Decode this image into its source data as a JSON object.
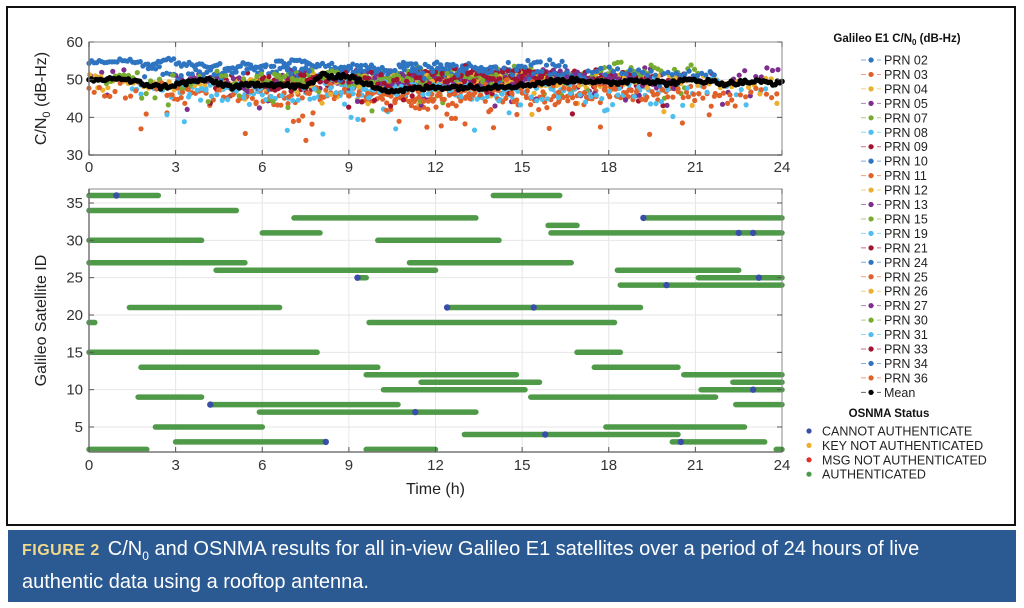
{
  "caption": {
    "figure_label": "FIGURE 2",
    "text_before_sub": "C/N",
    "sub": "0",
    "text_after_sub": " and OSNMA results for all in-view Galileo E1 satellites over a period of 24 hours of live authentic data using a rooftop antenna."
  },
  "chart_data": [
    {
      "type": "scatter",
      "title": "",
      "xlabel": "",
      "ylabel": "C/N0 (dB-Hz)",
      "ylabel_main": "C/N",
      "ylabel_sub": "0",
      "ylabel_suffix": " (dB-Hz)",
      "xlim": [
        0,
        24
      ],
      "ylim": [
        30,
        60
      ],
      "xticks": [
        0,
        3,
        6,
        9,
        12,
        15,
        18,
        21,
        24
      ],
      "yticks": [
        30,
        40,
        50,
        60
      ],
      "grid": true,
      "legend_title_main": "Galileo E1 C/N",
      "legend_title_sub": "0",
      "legend_title_suffix": " (dB-Hz)",
      "legend_position": "right",
      "series": [
        {
          "name": "PRN 02",
          "color": "#2e74c0",
          "approx_level": 54,
          "variability": 1.0
        },
        {
          "name": "PRN 03",
          "color": "#e0622a",
          "approx_level": 46,
          "variability": 4.0
        },
        {
          "name": "PRN 04",
          "color": "#ebb02e",
          "approx_level": 50,
          "variability": 3.0
        },
        {
          "name": "PRN 05",
          "color": "#7e2f8e",
          "approx_level": 51,
          "variability": 3.0
        },
        {
          "name": "PRN 07",
          "color": "#77ac30",
          "approx_level": 52,
          "variability": 2.5
        },
        {
          "name": "PRN 08",
          "color": "#4dbeee",
          "approx_level": 47,
          "variability": 4.0
        },
        {
          "name": "PRN 09",
          "color": "#a2142f",
          "approx_level": 50,
          "variability": 3.5
        },
        {
          "name": "PRN 10",
          "color": "#2e74c0",
          "approx_level": 53,
          "variability": 1.5
        },
        {
          "name": "PRN 11",
          "color": "#e0622a",
          "approx_level": 45,
          "variability": 4.0
        },
        {
          "name": "PRN 12",
          "color": "#ebb02e",
          "approx_level": 49,
          "variability": 3.0
        },
        {
          "name": "PRN 13",
          "color": "#7e2f8e",
          "approx_level": 50,
          "variability": 3.0
        },
        {
          "name": "PRN 15",
          "color": "#77ac30",
          "approx_level": 51,
          "variability": 2.5
        },
        {
          "name": "PRN 19",
          "color": "#4dbeee",
          "approx_level": 48,
          "variability": 4.0
        },
        {
          "name": "PRN 21",
          "color": "#a2142f",
          "approx_level": 51,
          "variability": 3.0
        },
        {
          "name": "PRN 24",
          "color": "#2e74c0",
          "approx_level": 52,
          "variability": 2.0
        },
        {
          "name": "PRN 25",
          "color": "#e0622a",
          "approx_level": 46,
          "variability": 4.0
        },
        {
          "name": "PRN 26",
          "color": "#ebb02e",
          "approx_level": 50,
          "variability": 3.0
        },
        {
          "name": "PRN 27",
          "color": "#7e2f8e",
          "approx_level": 50,
          "variability": 3.0
        },
        {
          "name": "PRN 30",
          "color": "#77ac30",
          "approx_level": 50,
          "variability": 3.0
        },
        {
          "name": "PRN 31",
          "color": "#4dbeee",
          "approx_level": 47,
          "variability": 4.5
        },
        {
          "name": "PRN 33",
          "color": "#a2142f",
          "approx_level": 50,
          "variability": 3.5
        },
        {
          "name": "PRN 34",
          "color": "#2e74c0",
          "approx_level": 53,
          "variability": 1.5
        },
        {
          "name": "PRN 36",
          "color": "#e0622a",
          "approx_level": 47,
          "variability": 4.0
        },
        {
          "name": "Mean",
          "color": "#000000",
          "mean_profile": [
            [
              0,
              49.5
            ],
            [
              1,
              50.5
            ],
            [
              1.5,
              49.5
            ],
            [
              2.5,
              48
            ],
            [
              4,
              50
            ],
            [
              5,
              48
            ],
            [
              6,
              49
            ],
            [
              7.5,
              48
            ],
            [
              8,
              51
            ],
            [
              9,
              51
            ],
            [
              9.5,
              49
            ],
            [
              10.5,
              47
            ],
            [
              12,
              48
            ],
            [
              13.5,
              48
            ],
            [
              15,
              48.5
            ],
            [
              16,
              49.5
            ],
            [
              17,
              50
            ],
            [
              18,
              49
            ],
            [
              19,
              50
            ],
            [
              20,
              49
            ],
            [
              21,
              50
            ],
            [
              22,
              49
            ],
            [
              23,
              49.5
            ],
            [
              24,
              49
            ]
          ]
        }
      ]
    },
    {
      "type": "scatter",
      "title": "",
      "xlabel": "Time (h)",
      "ylabel": "Galileo Satellite ID",
      "xlim": [
        0,
        24
      ],
      "ylim": [
        1,
        37
      ],
      "xticks": [
        0,
        3,
        6,
        9,
        12,
        15,
        18,
        21,
        24
      ],
      "yticks": [
        5,
        10,
        15,
        20,
        25,
        30,
        35
      ],
      "grid": true,
      "legend_title": "OSNMA Status",
      "legend_position": "right",
      "status_legend": [
        {
          "label": "CANNOT AUTHENTICATE",
          "color": "#3a4ea8"
        },
        {
          "label": "KEY NOT AUTHENTICATED",
          "color": "#ebb02e"
        },
        {
          "label": "MSG NOT AUTHENTICATED",
          "color": "#e0302a"
        },
        {
          "label": "AUTHENTICATED",
          "color": "#4f9a48"
        }
      ],
      "authenticated_intervals": [
        {
          "sat": 36,
          "start": 0.0,
          "end": 2.4
        },
        {
          "sat": 36,
          "start": 14.0,
          "end": 16.3
        },
        {
          "sat": 34,
          "start": 0.0,
          "end": 5.1
        },
        {
          "sat": 33,
          "start": 7.1,
          "end": 13.4
        },
        {
          "sat": 33,
          "start": 19.2,
          "end": 24.0
        },
        {
          "sat": 32,
          "start": 15.9,
          "end": 16.9
        },
        {
          "sat": 31,
          "start": 6.0,
          "end": 8.0
        },
        {
          "sat": 31,
          "start": 16.0,
          "end": 24.0
        },
        {
          "sat": 30,
          "start": 0.0,
          "end": 3.9
        },
        {
          "sat": 30,
          "start": 10.0,
          "end": 14.2
        },
        {
          "sat": 27,
          "start": 0.0,
          "end": 5.4
        },
        {
          "sat": 27,
          "start": 11.1,
          "end": 16.7
        },
        {
          "sat": 26,
          "start": 4.4,
          "end": 12.0
        },
        {
          "sat": 26,
          "start": 18.3,
          "end": 22.5
        },
        {
          "sat": 25,
          "start": 9.3,
          "end": 9.6
        },
        {
          "sat": 25,
          "start": 21.1,
          "end": 24.0
        },
        {
          "sat": 24,
          "start": 18.4,
          "end": 24.0
        },
        {
          "sat": 21,
          "start": 1.4,
          "end": 6.6
        },
        {
          "sat": 21,
          "start": 12.4,
          "end": 19.1
        },
        {
          "sat": 19,
          "start": 0.0,
          "end": 0.2
        },
        {
          "sat": 19,
          "start": 9.7,
          "end": 18.2
        },
        {
          "sat": 15,
          "start": 0.0,
          "end": 7.9
        },
        {
          "sat": 15,
          "start": 16.9,
          "end": 18.4
        },
        {
          "sat": 13,
          "start": 1.8,
          "end": 10.0
        },
        {
          "sat": 13,
          "start": 17.5,
          "end": 20.4
        },
        {
          "sat": 12,
          "start": 9.6,
          "end": 14.8
        },
        {
          "sat": 12,
          "start": 20.6,
          "end": 24.0
        },
        {
          "sat": 11,
          "start": 11.5,
          "end": 15.6
        },
        {
          "sat": 11,
          "start": 22.3,
          "end": 24.0
        },
        {
          "sat": 10,
          "start": 10.2,
          "end": 15.1
        },
        {
          "sat": 10,
          "start": 21.2,
          "end": 24.0
        },
        {
          "sat": 9,
          "start": 1.7,
          "end": 3.9
        },
        {
          "sat": 9,
          "start": 15.3,
          "end": 21.7
        },
        {
          "sat": 8,
          "start": 4.2,
          "end": 10.7
        },
        {
          "sat": 8,
          "start": 22.4,
          "end": 24.0
        },
        {
          "sat": 7,
          "start": 5.9,
          "end": 13.4
        },
        {
          "sat": 5,
          "start": 2.3,
          "end": 6.0
        },
        {
          "sat": 5,
          "start": 17.9,
          "end": 22.7
        },
        {
          "sat": 4,
          "start": 13.0,
          "end": 20.4
        },
        {
          "sat": 3,
          "start": 3.0,
          "end": 8.2
        },
        {
          "sat": 3,
          "start": 20.2,
          "end": 23.4
        },
        {
          "sat": 2,
          "start": 0.0,
          "end": 2.0
        },
        {
          "sat": 2,
          "start": 9.6,
          "end": 12.0
        },
        {
          "sat": 2,
          "start": 23.8,
          "end": 24.0
        }
      ],
      "cannot_authenticate_points": [
        {
          "sat": 36,
          "t": 0.95
        },
        {
          "sat": 33,
          "t": 19.2
        },
        {
          "sat": 31,
          "t": 22.5
        },
        {
          "sat": 31,
          "t": 23.0
        },
        {
          "sat": 25,
          "t": 9.3
        },
        {
          "sat": 25,
          "t": 23.2
        },
        {
          "sat": 24,
          "t": 20.0
        },
        {
          "sat": 21,
          "t": 12.4
        },
        {
          "sat": 21,
          "t": 15.4
        },
        {
          "sat": 10,
          "t": 23.0
        },
        {
          "sat": 8,
          "t": 4.2
        },
        {
          "sat": 7,
          "t": 11.3
        },
        {
          "sat": 4,
          "t": 15.8
        },
        {
          "sat": 3,
          "t": 8.2
        },
        {
          "sat": 3,
          "t": 20.5
        }
      ]
    }
  ]
}
